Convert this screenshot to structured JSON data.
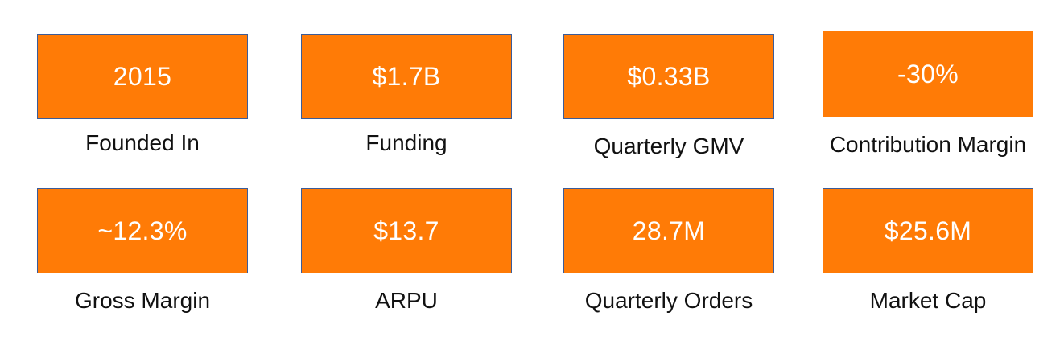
{
  "metrics": [
    {
      "value": "2015",
      "label": "Founded In"
    },
    {
      "value": "$1.7B",
      "label": "Funding"
    },
    {
      "value": "$0.33B",
      "label": "Quarterly GMV"
    },
    {
      "value": "-30%",
      "label": "Contribution Margin"
    },
    {
      "value": "~12.3%",
      "label": "Gross Margin"
    },
    {
      "value": "$13.7",
      "label": "ARPU"
    },
    {
      "value": "28.7M",
      "label": "Quarterly Orders"
    },
    {
      "value": "$25.6M",
      "label": "Market Cap"
    }
  ],
  "colors": {
    "box_fill": "#FF7B06",
    "box_border": "#3B5C99",
    "value_text": "#ffffff",
    "label_text": "#111111"
  }
}
